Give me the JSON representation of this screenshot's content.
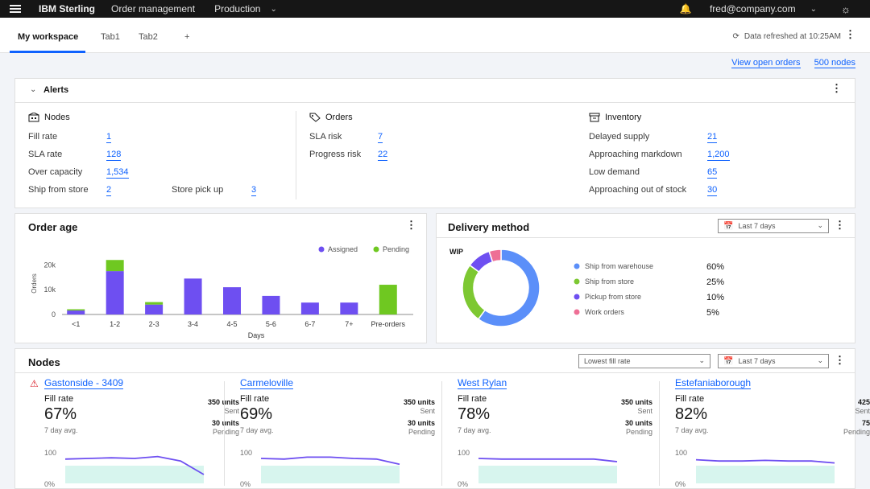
{
  "topbar": {
    "brand": "IBM Sterling",
    "nav": [
      "Order management",
      "Production"
    ],
    "user": "fred@company.com"
  },
  "tabs": {
    "items": [
      "My workspace",
      "Tab1",
      "Tab2",
      "+"
    ],
    "active": 0,
    "refreshed": "Data refreshed at 10:25AM"
  },
  "links": {
    "open_orders": "View open orders",
    "nodes": "500 nodes"
  },
  "alerts": {
    "title": "Alerts",
    "nodes": {
      "label": "Nodes",
      "rows": [
        {
          "label": "Fill rate",
          "value": "1"
        },
        {
          "label": "SLA rate",
          "value": "128"
        },
        {
          "label": "Over capacity",
          "value": "1,534"
        },
        {
          "label": "Ship from store",
          "value": "2"
        }
      ],
      "extra": {
        "label": "Store pick up",
        "value": "3"
      }
    },
    "orders": {
      "label": "Orders",
      "rows": [
        {
          "label": "SLA risk",
          "value": "7"
        },
        {
          "label": "Progress risk",
          "value": "22"
        }
      ]
    },
    "inventory": {
      "label": "Inventory",
      "rows": [
        {
          "label": "Delayed supply",
          "value": "21"
        },
        {
          "label": "Approaching markdown",
          "value": "1,200"
        },
        {
          "label": "Low demand",
          "value": "65"
        },
        {
          "label": "Approaching out of stock",
          "value": "30"
        }
      ]
    }
  },
  "order_age": {
    "title": "Order age",
    "chart_data": {
      "type": "bar",
      "stacked": true,
      "categories": [
        "<1",
        "1-2",
        "2-3",
        "3-4",
        "4-5",
        "5-6",
        "6-7",
        "7+",
        "Pre-orders"
      ],
      "series": [
        {
          "name": "Assigned",
          "color": "#6e4ff1",
          "values": [
            1600,
            17500,
            4000,
            14500,
            11000,
            7500,
            4800,
            4800,
            0
          ]
        },
        {
          "name": "Pending",
          "color": "#6fc821",
          "values": [
            500,
            4500,
            1000,
            0,
            0,
            0,
            0,
            0,
            12000
          ]
        }
      ],
      "yticks": [
        "20k",
        "10k",
        "0"
      ],
      "ylim": [
        0,
        25000
      ],
      "xlabel": "Days",
      "ylabel": "Orders",
      "legend": "top-right"
    }
  },
  "delivery": {
    "title": "Delivery method",
    "range": "Last 7 days",
    "wip": "WIP",
    "chart_data": {
      "type": "pie",
      "donut": true,
      "labels": [
        "Ship from warehouse",
        "Ship from store",
        "Pickup from store",
        "Work orders"
      ],
      "values": [
        60,
        25,
        10,
        5
      ],
      "display": [
        "60%",
        "25%",
        "10%",
        "5%"
      ],
      "colors": [
        "#5b8ff9",
        "#7dc832",
        "#6e4ff1",
        "#ee6f95"
      ]
    }
  },
  "nodes_card": {
    "title": "Nodes",
    "sort": "Lowest fill rate",
    "range": "Last 7 days",
    "fill_label": "Fill rate",
    "avg_label": "7 day avg.",
    "sent_label": "Sent",
    "pending_label": "Pending",
    "y100": "100",
    "y0": "0%",
    "items": [
      {
        "name": "Gastonside - 3409",
        "warning": true,
        "pct": "67%",
        "sent": "350 units",
        "pending": "30 units",
        "trend": [
          78,
          80,
          82,
          80,
          86,
          72,
          30
        ]
      },
      {
        "name": "Carmeloville",
        "warning": false,
        "pct": "69%",
        "sent": "350 units",
        "pending": "30 units",
        "trend": [
          80,
          78,
          84,
          84,
          80,
          78,
          62
        ]
      },
      {
        "name": "West Rylan",
        "warning": false,
        "pct": "78%",
        "sent": "350 units",
        "pending": "30 units",
        "trend": [
          80,
          78,
          78,
          78,
          78,
          78,
          70
        ]
      },
      {
        "name": "Estefaniaborough",
        "warning": false,
        "pct": "82%",
        "sent": "425",
        "pending": "75",
        "trend": [
          76,
          72,
          72,
          74,
          72,
          72,
          66
        ]
      }
    ]
  }
}
